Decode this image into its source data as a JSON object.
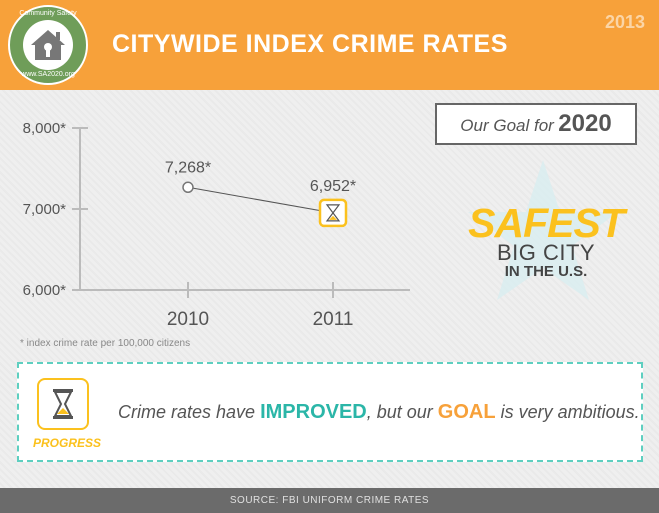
{
  "header": {
    "title": "CITYWIDE INDEX CRIME RATES",
    "year": "2013",
    "logo_top": "Community Safety",
    "logo_bottom": "www.SA2020.org"
  },
  "goal": {
    "label": "Our Goal for",
    "year": "2020",
    "line1": "SAFEST",
    "line2": "BIG CITY",
    "line3": "IN THE U.S."
  },
  "footnote": "* index crime rate per 100,000 citizens",
  "progress": {
    "label": "PROGRESS",
    "msg_part1": "Crime rates have ",
    "msg_improved": "IMPROVED",
    "msg_part2": ", but our ",
    "msg_goal": "GOAL",
    "msg_part3": " is very ambitious."
  },
  "footer": "SOURCE: FBI UNIFORM CRIME RATES",
  "chart_data": {
    "type": "line",
    "categories": [
      "2010",
      "2011"
    ],
    "values": [
      7268,
      6952
    ],
    "data_labels": [
      "7,268*",
      "6,952*"
    ],
    "yticks": [
      "6,000*",
      "7,000*",
      "8,000*"
    ],
    "ylim": [
      6000,
      8000
    ]
  },
  "colors": {
    "orange": "#f7a13a",
    "yellow": "#fbc11e",
    "teal": "#2bb6a8",
    "gray": "#6b6b6b"
  }
}
